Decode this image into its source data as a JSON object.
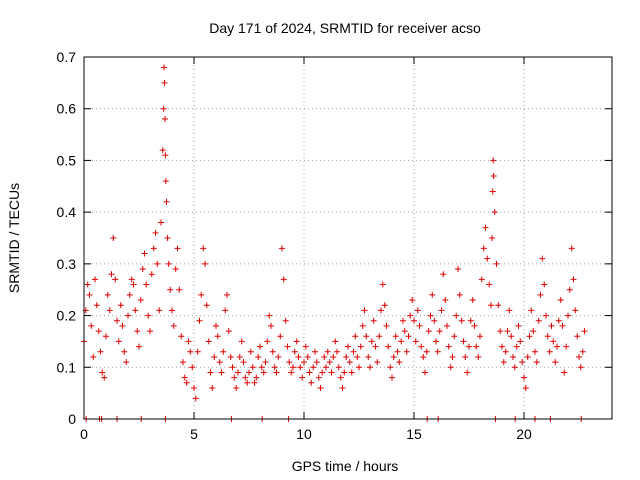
{
  "chart_data": {
    "type": "scatter",
    "title": "Day 171 of 2024, SRMTID for receiver acso",
    "xlabel": "GPS time / hours",
    "ylabel": "SRMTID / TECUs",
    "xlim": [
      0,
      24
    ],
    "ylim": [
      0,
      0.7
    ],
    "xticks": [
      0,
      5,
      10,
      15,
      20
    ],
    "yticks": [
      0,
      0.1,
      0.2,
      0.3,
      0.4,
      0.5,
      0.6,
      0.7
    ],
    "grid": true,
    "marker": "+",
    "color": "#e00000",
    "series": [
      {
        "name": "SRMTID",
        "x": [
          0.0,
          0.08,
          0.17,
          0.25,
          0.33,
          0.42,
          0.5,
          0.58,
          0.67,
          0.75,
          0.83,
          0.92,
          1.0,
          1.08,
          1.17,
          1.25,
          1.33,
          1.42,
          1.5,
          1.58,
          1.67,
          1.75,
          1.83,
          1.92,
          2.0,
          2.08,
          2.17,
          2.25,
          2.33,
          2.42,
          2.5,
          2.58,
          2.67,
          2.75,
          2.83,
          2.92,
          3.0,
          3.08,
          3.17,
          3.25,
          3.33,
          3.42,
          3.5,
          3.58,
          3.62,
          3.64,
          3.66,
          3.68,
          3.7,
          3.72,
          3.75,
          3.8,
          3.85,
          3.92,
          4.0,
          4.08,
          4.17,
          4.25,
          4.33,
          4.42,
          4.5,
          4.58,
          4.67,
          4.75,
          4.83,
          4.92,
          5.0,
          5.08,
          5.17,
          5.25,
          5.33,
          5.42,
          5.5,
          5.58,
          5.67,
          5.75,
          5.83,
          5.92,
          6.0,
          6.08,
          6.17,
          6.25,
          6.33,
          6.42,
          6.5,
          6.58,
          6.67,
          6.75,
          6.83,
          6.92,
          7.0,
          7.08,
          7.17,
          7.25,
          7.33,
          7.42,
          7.5,
          7.58,
          7.67,
          7.75,
          7.83,
          7.92,
          8.0,
          8.08,
          8.17,
          8.25,
          8.33,
          8.42,
          8.5,
          8.58,
          8.67,
          8.75,
          8.83,
          8.92,
          9.0,
          9.08,
          9.17,
          9.25,
          9.33,
          9.42,
          9.5,
          9.58,
          9.67,
          9.75,
          9.83,
          9.92,
          10.0,
          10.08,
          10.17,
          10.25,
          10.33,
          10.42,
          10.5,
          10.58,
          10.67,
          10.75,
          10.83,
          10.92,
          11.0,
          11.08,
          11.17,
          11.25,
          11.33,
          11.42,
          11.5,
          11.58,
          11.67,
          11.75,
          11.83,
          11.92,
          12.0,
          12.08,
          12.17,
          12.25,
          12.33,
          12.42,
          12.5,
          12.58,
          12.67,
          12.75,
          12.83,
          12.92,
          13.0,
          13.08,
          13.17,
          13.25,
          13.33,
          13.42,
          13.5,
          13.58,
          13.67,
          13.75,
          13.83,
          13.92,
          14.0,
          14.08,
          14.17,
          14.25,
          14.33,
          14.42,
          14.5,
          14.58,
          14.67,
          14.75,
          14.83,
          14.92,
          15.0,
          15.08,
          15.17,
          15.25,
          15.33,
          15.42,
          15.5,
          15.58,
          15.67,
          15.75,
          15.83,
          15.92,
          16.0,
          16.08,
          16.17,
          16.25,
          16.33,
          16.42,
          16.5,
          16.58,
          16.67,
          16.75,
          16.83,
          16.92,
          17.0,
          17.08,
          17.17,
          17.25,
          17.33,
          17.42,
          17.5,
          17.58,
          17.67,
          17.75,
          17.83,
          17.92,
          18.0,
          18.08,
          18.17,
          18.25,
          18.33,
          18.42,
          18.5,
          18.55,
          18.58,
          18.6,
          18.62,
          18.67,
          18.75,
          18.83,
          18.92,
          19.0,
          19.08,
          19.17,
          19.25,
          19.33,
          19.42,
          19.5,
          19.58,
          19.67,
          19.75,
          19.83,
          19.92,
          20.0,
          20.08,
          20.17,
          20.25,
          20.33,
          20.42,
          20.5,
          20.58,
          20.67,
          20.75,
          20.83,
          20.92,
          21.0,
          21.08,
          21.17,
          21.25,
          21.33,
          21.42,
          21.5,
          21.58,
          21.67,
          21.75,
          21.83,
          21.92,
          22.0,
          22.08,
          22.17,
          22.25,
          22.33,
          22.42,
          22.5,
          22.58,
          22.67,
          22.75
        ],
        "y": [
          0.15,
          0.21,
          0.26,
          0.24,
          0.18,
          0.12,
          0.27,
          0.22,
          0.17,
          0.13,
          0.09,
          0.08,
          0.16,
          0.24,
          0.21,
          0.28,
          0.35,
          0.27,
          0.19,
          0.15,
          0.22,
          0.18,
          0.13,
          0.11,
          0.2,
          0.24,
          0.27,
          0.26,
          0.21,
          0.17,
          0.14,
          0.23,
          0.29,
          0.32,
          0.26,
          0.2,
          0.17,
          0.28,
          0.33,
          0.36,
          0.3,
          0.21,
          0.38,
          0.52,
          0.6,
          0.68,
          0.65,
          0.58,
          0.51,
          0.46,
          0.42,
          0.35,
          0.3,
          0.25,
          0.21,
          0.18,
          0.29,
          0.33,
          0.25,
          0.16,
          0.11,
          0.08,
          0.07,
          0.15,
          0.13,
          0.1,
          0.06,
          0.04,
          0.13,
          0.19,
          0.24,
          0.33,
          0.3,
          0.22,
          0.15,
          0.09,
          0.06,
          0.12,
          0.18,
          0.16,
          0.11,
          0.09,
          0.13,
          0.21,
          0.24,
          0.17,
          0.12,
          0.1,
          0.08,
          0.06,
          0.09,
          0.12,
          0.15,
          0.11,
          0.08,
          0.07,
          0.09,
          0.13,
          0.1,
          0.07,
          0.08,
          0.12,
          0.14,
          0.1,
          0.09,
          0.11,
          0.15,
          0.2,
          0.18,
          0.13,
          0.1,
          0.09,
          0.12,
          0.16,
          0.33,
          0.27,
          0.19,
          0.14,
          0.11,
          0.09,
          0.1,
          0.13,
          0.15,
          0.12,
          0.1,
          0.08,
          0.11,
          0.14,
          0.12,
          0.09,
          0.07,
          0.1,
          0.13,
          0.11,
          0.08,
          0.06,
          0.09,
          0.12,
          0.1,
          0.13,
          0.11,
          0.09,
          0.12,
          0.15,
          0.13,
          0.1,
          0.08,
          0.06,
          0.09,
          0.12,
          0.14,
          0.11,
          0.09,
          0.13,
          0.16,
          0.12,
          0.1,
          0.14,
          0.18,
          0.21,
          0.16,
          0.12,
          0.1,
          0.15,
          0.19,
          0.14,
          0.11,
          0.16,
          0.21,
          0.26,
          0.22,
          0.18,
          0.14,
          0.1,
          0.08,
          0.12,
          0.16,
          0.13,
          0.11,
          0.15,
          0.19,
          0.17,
          0.13,
          0.16,
          0.2,
          0.23,
          0.19,
          0.15,
          0.21,
          0.18,
          0.14,
          0.12,
          0.09,
          0.13,
          0.17,
          0.2,
          0.24,
          0.19,
          0.15,
          0.13,
          0.17,
          0.21,
          0.28,
          0.23,
          0.18,
          0.14,
          0.1,
          0.12,
          0.16,
          0.2,
          0.29,
          0.24,
          0.19,
          0.15,
          0.12,
          0.09,
          0.14,
          0.19,
          0.23,
          0.18,
          0.14,
          0.12,
          0.16,
          0.27,
          0.33,
          0.37,
          0.31,
          0.26,
          0.22,
          0.35,
          0.44,
          0.5,
          0.47,
          0.4,
          0.3,
          0.22,
          0.17,
          0.14,
          0.11,
          0.13,
          0.17,
          0.21,
          0.16,
          0.12,
          0.1,
          0.14,
          0.18,
          0.15,
          0.11,
          0.08,
          0.06,
          0.12,
          0.16,
          0.21,
          0.17,
          0.13,
          0.11,
          0.19,
          0.24,
          0.31,
          0.26,
          0.2,
          0.16,
          0.13,
          0.18,
          0.15,
          0.11,
          0.14,
          0.19,
          0.23,
          0.18,
          0.09,
          0.14,
          0.2,
          0.25,
          0.33,
          0.27,
          0.21,
          0.16,
          0.12,
          0.1,
          0.13,
          0.17
        ]
      }
    ],
    "zero_marks_x": [
      0.1,
      0.7,
      0.8,
      1.5,
      2.6,
      3.7,
      6.7,
      8.1,
      9.3,
      15.6,
      16.1,
      18.7,
      19.6,
      20.5,
      21.2,
      22.6
    ]
  }
}
